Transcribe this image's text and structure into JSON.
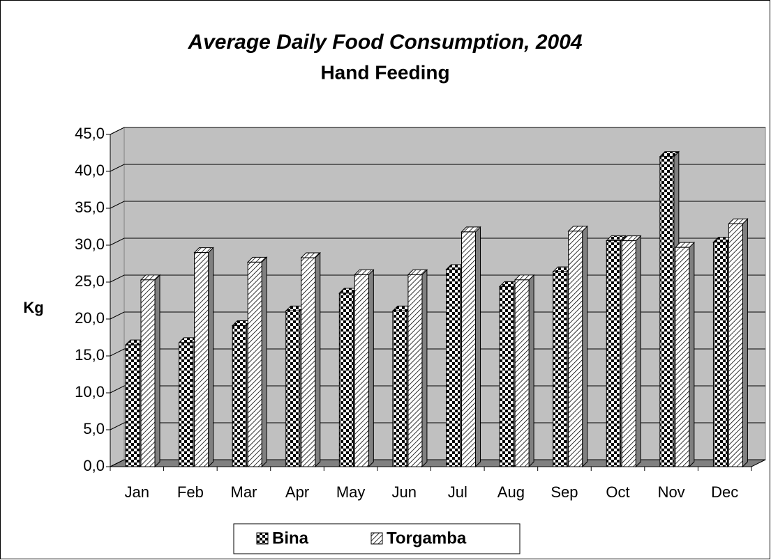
{
  "chart_data": {
    "type": "bar",
    "title": "Average Daily Food Consumption, 2004",
    "subtitle": "Hand Feeding",
    "y_label": "Kg",
    "categories": [
      "Jan",
      "Feb",
      "Mar",
      "Apr",
      "May",
      "Jun",
      "Jul",
      "Aug",
      "Sep",
      "Oct",
      "Nov",
      "Dec"
    ],
    "series": [
      {
        "name": "Bina",
        "color": "#000000",
        "values": [
          16.5,
          16.8,
          19.1,
          21.1,
          23.5,
          21.1,
          26.7,
          24.4,
          26.4,
          30.6,
          42.0,
          30.4
        ]
      },
      {
        "name": "Torgamba",
        "color": "#808080",
        "values": [
          25.3,
          29.0,
          27.7,
          28.3,
          26.0,
          26.0,
          31.8,
          25.3,
          31.9,
          30.6,
          29.7,
          32.9
        ]
      }
    ],
    "ylim": [
      0,
      45
    ],
    "yticks": [
      {
        "value": 0,
        "label": "0,0"
      },
      {
        "value": 5,
        "label": "5,0"
      },
      {
        "value": 10,
        "label": "10,0"
      },
      {
        "value": 15,
        "label": "15,0"
      },
      {
        "value": 20,
        "label": "20,0"
      },
      {
        "value": 25,
        "label": "25,0"
      },
      {
        "value": 30,
        "label": "30,0"
      },
      {
        "value": 35,
        "label": "35,0"
      },
      {
        "value": 40,
        "label": "40,0"
      },
      {
        "value": 45,
        "label": "45,0"
      }
    ],
    "grid": true,
    "legend": "bottom"
  }
}
